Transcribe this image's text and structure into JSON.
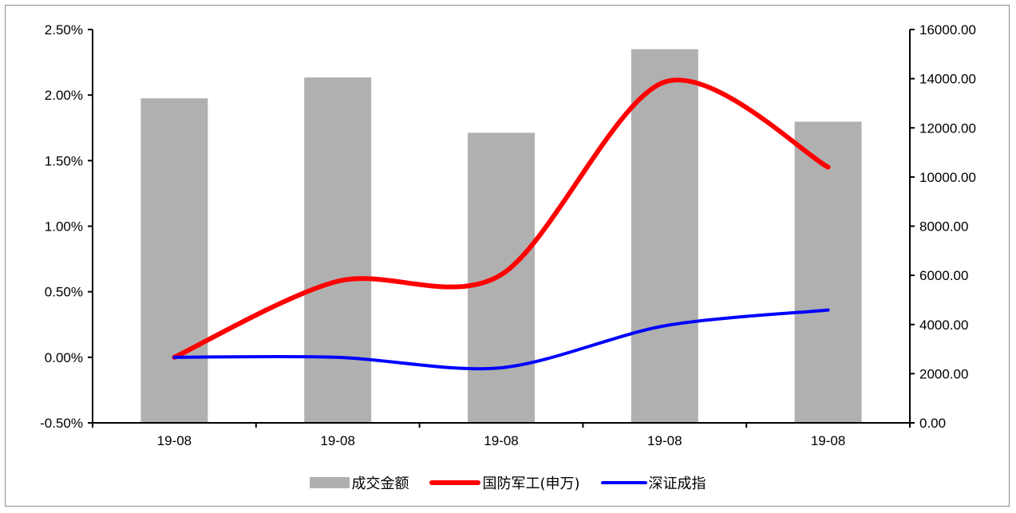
{
  "chart_data": {
    "type": "bar",
    "categories": [
      "19-08",
      "19-08",
      "19-08",
      "19-08",
      "19-08"
    ],
    "left_axis": {
      "ylim": [
        -0.005,
        0.025
      ],
      "ticks": [
        -0.005,
        0.0,
        0.005,
        0.01,
        0.015,
        0.02,
        0.025
      ],
      "tick_labels": [
        "-0.50%",
        "0.00%",
        "0.50%",
        "1.00%",
        "1.50%",
        "2.00%",
        "2.50%"
      ]
    },
    "right_axis": {
      "ylim": [
        0,
        16000
      ],
      "ticks": [
        0,
        2000,
        4000,
        6000,
        8000,
        10000,
        12000,
        14000,
        16000
      ],
      "tick_labels": [
        "0.00",
        "2000.00",
        "4000.00",
        "6000.00",
        "8000.00",
        "10000.00",
        "12000.00",
        "14000.00",
        "16000.00"
      ]
    },
    "series": [
      {
        "name": "成交金额",
        "kind": "bar",
        "axis": "right",
        "color": "#b0b0b0",
        "values": [
          13200,
          14050,
          11800,
          15200,
          12250
        ]
      },
      {
        "name": "国防军工(申万)",
        "kind": "line",
        "axis": "left",
        "color": "#ff0000",
        "values": [
          0.0,
          0.0058,
          0.0063,
          0.021,
          0.0145
        ]
      },
      {
        "name": "深证成指",
        "kind": "line",
        "axis": "left",
        "color": "#0000ff",
        "values": [
          0.0,
          0.0,
          -0.0008,
          0.0024,
          0.0036
        ]
      }
    ],
    "legend_position": "bottom",
    "grid": false
  }
}
